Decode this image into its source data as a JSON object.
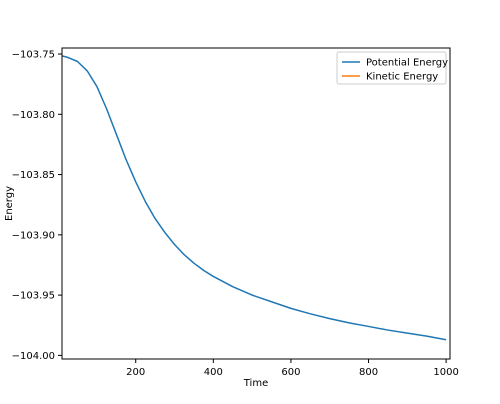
{
  "chart_data": {
    "type": "line",
    "title": "",
    "xlabel": "Time",
    "ylabel": "Energy",
    "xlim": [
      10,
      1010
    ],
    "ylim": [
      -104.003,
      -103.745
    ],
    "x_ticks": [
      200,
      400,
      600,
      800,
      1000
    ],
    "y_ticks": [
      -103.75,
      -103.8,
      -103.85,
      -103.9,
      -103.95,
      -104.0
    ],
    "x_tick_labels": [
      "200",
      "400",
      "600",
      "800",
      "1000"
    ],
    "y_tick_labels": [
      "−103.75",
      "−103.80",
      "−103.85",
      "−103.90",
      "−103.95",
      "−104.00"
    ],
    "grid": false,
    "legend_position": "top-right",
    "series": [
      {
        "name": "Potential Energy",
        "color": "#1f77b4",
        "x": [
          10,
          25,
          50,
          75,
          100,
          125,
          150,
          175,
          200,
          225,
          250,
          275,
          300,
          325,
          350,
          375,
          400,
          450,
          500,
          550,
          600,
          650,
          700,
          750,
          800,
          850,
          900,
          950,
          1000
        ],
        "y": [
          -103.7515,
          -103.7528,
          -103.7562,
          -103.764,
          -103.777,
          -103.7955,
          -103.8165,
          -103.8375,
          -103.856,
          -103.8725,
          -103.8865,
          -103.898,
          -103.908,
          -103.9165,
          -103.9235,
          -103.9295,
          -103.9345,
          -103.943,
          -103.95,
          -103.9555,
          -103.961,
          -103.9655,
          -103.9695,
          -103.973,
          -103.976,
          -103.979,
          -103.9815,
          -103.984,
          -103.987
        ]
      },
      {
        "name": "Kinetic Energy",
        "color": "#ff7f0e",
        "x": [],
        "y": []
      }
    ]
  }
}
